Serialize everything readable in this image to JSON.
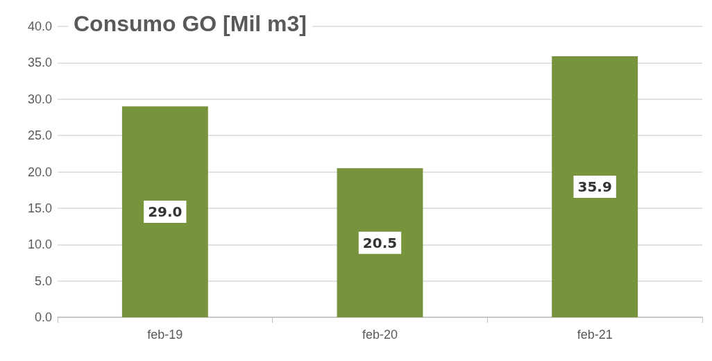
{
  "chart_data": {
    "type": "bar",
    "title": "Consumo GO [Mil m3]",
    "categories": [
      "feb-19",
      "feb-20",
      "feb-21"
    ],
    "values": [
      29.0,
      20.5,
      35.9
    ],
    "color": "#77933c",
    "ylim": [
      0,
      40
    ],
    "yticks": [
      {
        "value": 0,
        "label": "0.0"
      },
      {
        "value": 5,
        "label": "5.0"
      },
      {
        "value": 10,
        "label": "10.0"
      },
      {
        "value": 15,
        "label": "15.0"
      },
      {
        "value": 20,
        "label": "20.0"
      },
      {
        "value": 25,
        "label": "25.0"
      },
      {
        "value": 30,
        "label": "30.0"
      },
      {
        "value": 35,
        "label": "35.0"
      },
      {
        "value": 40,
        "label": "40.0"
      }
    ],
    "value_labels": [
      "29.0",
      "20.5",
      "35.9"
    ],
    "grid": true
  }
}
